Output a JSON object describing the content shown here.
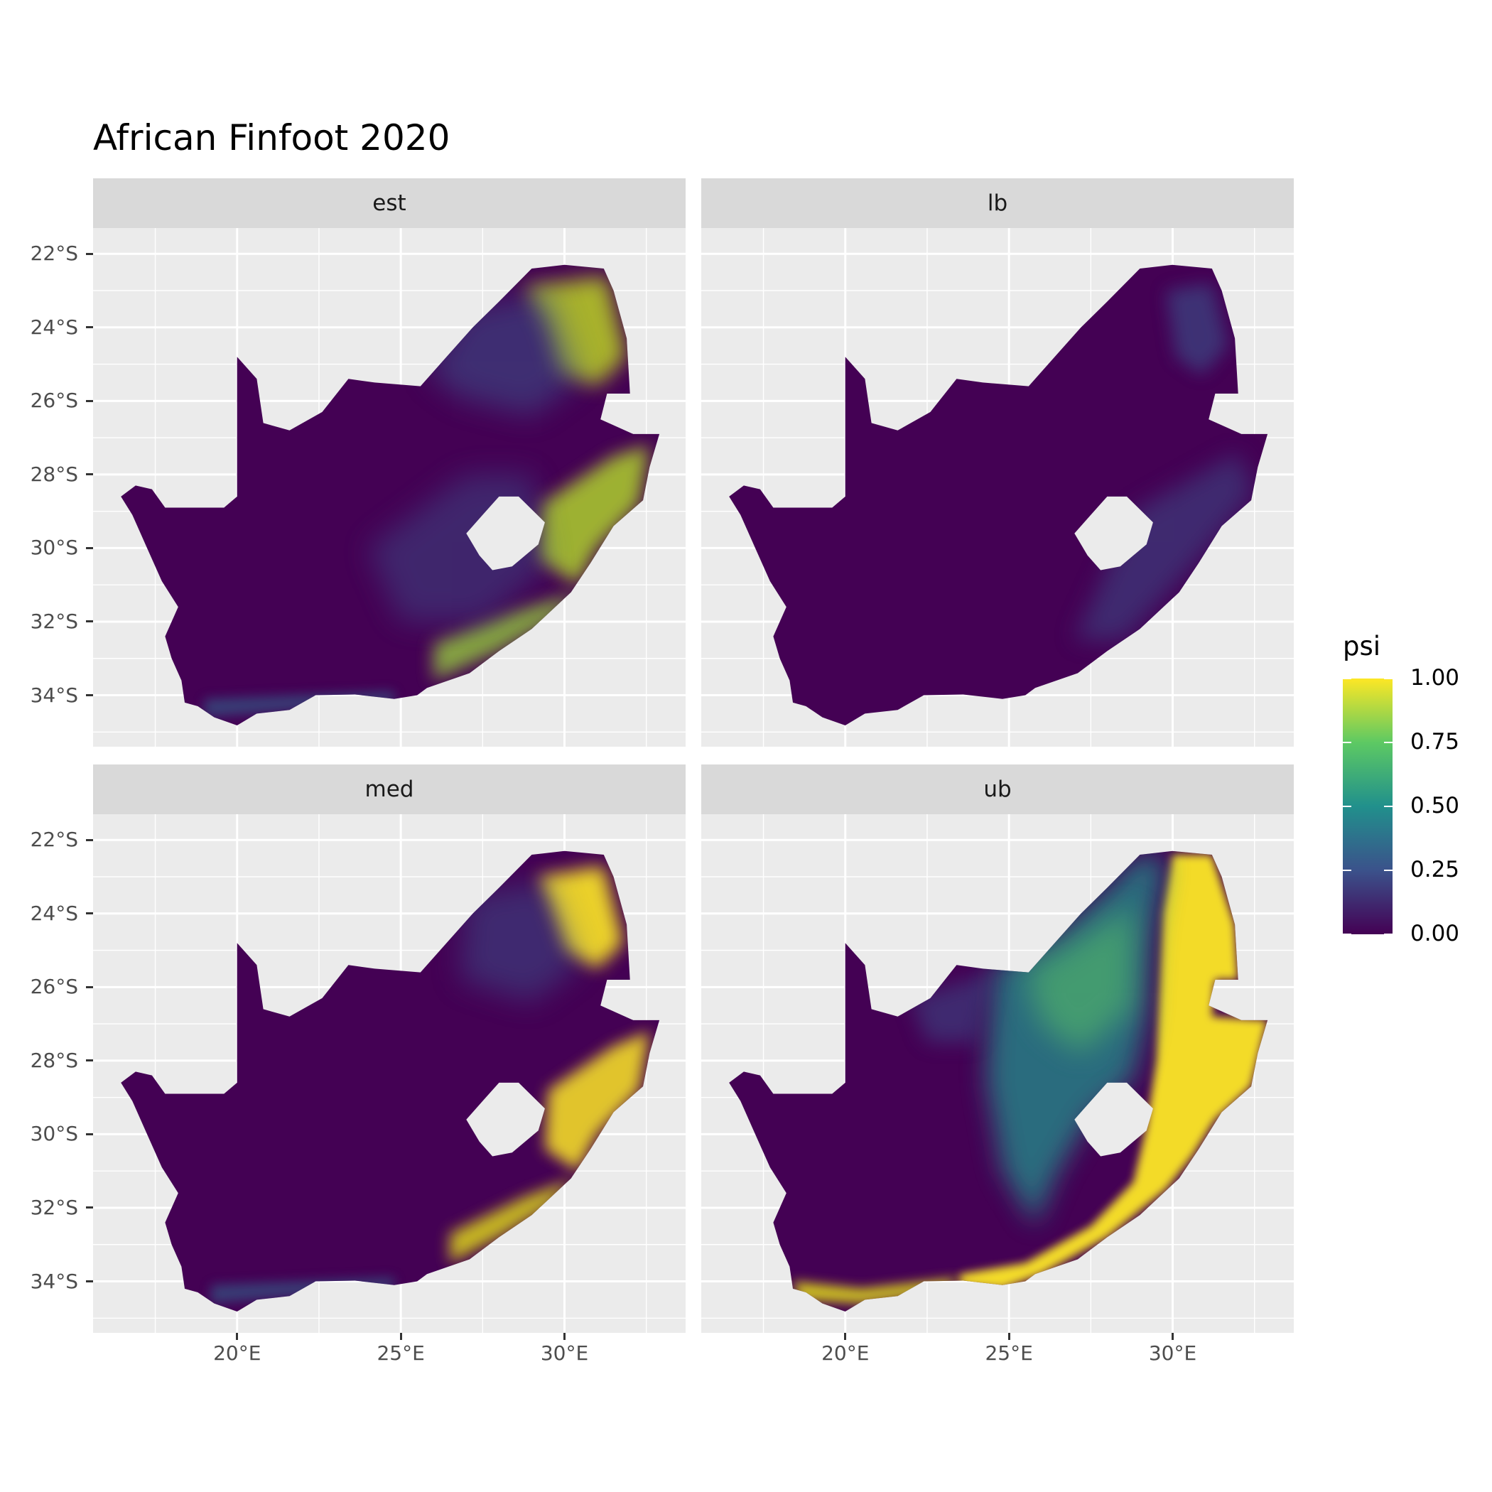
{
  "title": "African Finfoot 2020",
  "chart_data": {
    "type": "heatmap",
    "title": "African Finfoot 2020",
    "xlabel": "",
    "ylabel": "",
    "panels": [
      "est",
      "lb",
      "med",
      "ub"
    ],
    "x_ticks": [
      "20°E",
      "25°E",
      "30°E"
    ],
    "x_tick_values": [
      20,
      25,
      30
    ],
    "y_ticks": [
      "22°S",
      "24°S",
      "26°S",
      "28°S",
      "30°S",
      "32°S",
      "34°S"
    ],
    "y_tick_values": [
      -22,
      -24,
      -26,
      -28,
      -30,
      -32,
      -34
    ],
    "xlim": [
      15.6,
      33.7
    ],
    "ylim": [
      -35.4,
      -21.3
    ],
    "legend": {
      "title": "psi",
      "labels": [
        "1.00",
        "0.75",
        "0.50",
        "0.25",
        "0.00"
      ],
      "values": [
        1.0,
        0.75,
        0.5,
        0.25,
        0.0
      ],
      "range": [
        0,
        1
      ],
      "placement": "right",
      "colormap": [
        "#440154",
        "#3b528b",
        "#21908c",
        "#5dc963",
        "#fde725"
      ]
    }
  }
}
